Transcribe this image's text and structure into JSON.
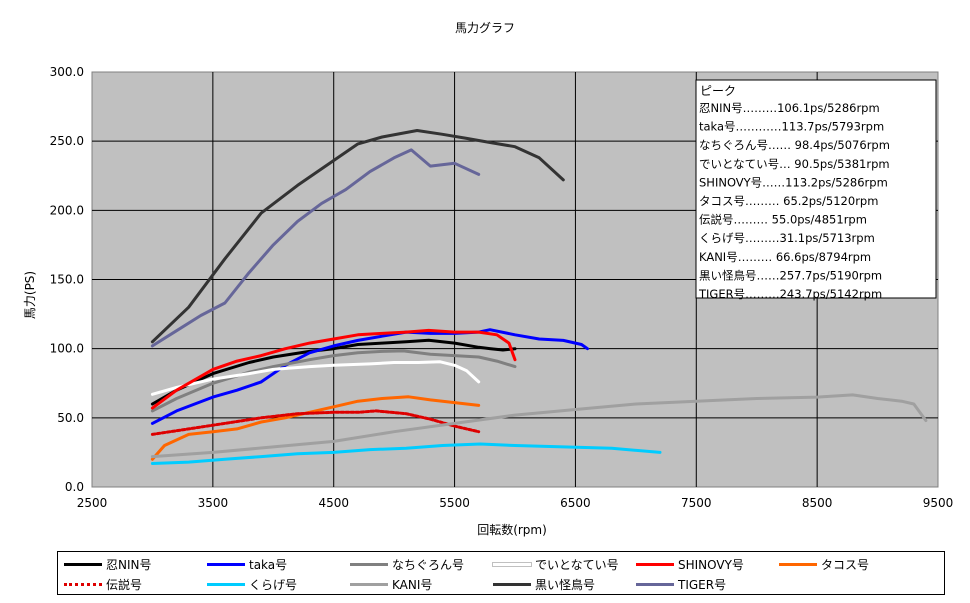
{
  "chart_data": {
    "type": "line",
    "title": "馬力グラフ",
    "xlabel": "回転数(rpm)",
    "ylabel": "馬力(PS)",
    "xlim": [
      2500,
      9500
    ],
    "ylim": [
      0,
      300
    ],
    "x_ticks": [
      "2500",
      "3500",
      "4500",
      "5500",
      "6500",
      "7500",
      "8500",
      "9500"
    ],
    "y_ticks": [
      "0.0",
      "50.0",
      "100.0",
      "150.0",
      "200.0",
      "250.0",
      "300.0"
    ],
    "grid": true,
    "peak_box": {
      "title": "ピーク",
      "rows": [
        "忍NIN号………106.1ps/5286rpm",
        "taka号…………113.7ps/5793rpm",
        "なちぐろん号……  98.4ps/5076rpm",
        "でいとなてい号…  90.5ps/5381rpm",
        "SHINOVY号……113.2ps/5286rpm",
        "タコス号………  65.2ps/5120rpm",
        "伝説号………  55.0ps/4851rpm",
        "くらげ号………31.1ps/5713rpm",
        "KANI号……… 66.6ps/8794rpm",
        "黒い怪鳥号……257.7ps/5190rpm",
        "TIGER号………243.7ps/5142rpm"
      ]
    },
    "series": [
      {
        "name": "忍NIN号",
        "color": "#000000",
        "dash": "",
        "x": [
          3000,
          3200,
          3500,
          3800,
          4000,
          4300,
          4500,
          4700,
          4900,
          5100,
          5286,
          5500,
          5700,
          5800,
          5900,
          6000
        ],
        "y": [
          60,
          70,
          82,
          90,
          94,
          98,
          100,
          103,
          104,
          105,
          106.1,
          104,
          101,
          100,
          99,
          100
        ]
      },
      {
        "name": "taka号",
        "color": "#0000ff",
        "dash": "",
        "x": [
          3000,
          3200,
          3500,
          3700,
          3900,
          4100,
          4300,
          4500,
          4700,
          4900,
          5100,
          5300,
          5500,
          5700,
          5793,
          6000,
          6200,
          6400,
          6550,
          6600
        ],
        "y": [
          46,
          55,
          65,
          70,
          76,
          88,
          97,
          102,
          106,
          109,
          112,
          111,
          111,
          112,
          113.7,
          110,
          107,
          106,
          103,
          100
        ]
      },
      {
        "name": "なちぐろん号",
        "color": "#808080",
        "dash": "",
        "x": [
          3000,
          3200,
          3500,
          3800,
          4000,
          4300,
          4500,
          4700,
          4900,
          5076,
          5300,
          5500,
          5700,
          5850,
          6000
        ],
        "y": [
          55,
          64,
          75,
          83,
          87,
          92,
          95,
          97,
          98,
          98.4,
          96,
          95,
          94,
          91,
          87
        ]
      },
      {
        "name": "でいとなてい号",
        "color": "#ffffff",
        "dash": "",
        "x": [
          3000,
          3200,
          3500,
          3800,
          4000,
          4300,
          4500,
          4800,
          5000,
          5200,
          5381,
          5500,
          5600,
          5700
        ],
        "y": [
          67,
          72,
          78,
          82,
          85,
          87,
          88,
          89,
          90,
          90,
          90.5,
          88,
          84,
          76
        ]
      },
      {
        "name": "SHINOVY号",
        "color": "#ff0000",
        "dash": "",
        "x": [
          3000,
          3200,
          3500,
          3700,
          3900,
          4100,
          4300,
          4500,
          4700,
          4900,
          5100,
          5286,
          5500,
          5700,
          5850,
          5950,
          6000
        ],
        "y": [
          57,
          70,
          85,
          91,
          95,
          100,
          104,
          107,
          110,
          111,
          112,
          113.2,
          112,
          112,
          110,
          104,
          92
        ]
      },
      {
        "name": "タコス号",
        "color": "#ff6600",
        "dash": "",
        "x": [
          3000,
          3100,
          3300,
          3500,
          3700,
          3900,
          4100,
          4300,
          4500,
          4700,
          4900,
          5120,
          5300,
          5500,
          5700
        ],
        "y": [
          20,
          30,
          38,
          40,
          42,
          47,
          50,
          54,
          58,
          62,
          64,
          65.2,
          63,
          61,
          59
        ]
      },
      {
        "name": "伝説号",
        "color": "#dd0000",
        "dash": "3 2",
        "x": [
          3000,
          3300,
          3600,
          3900,
          4200,
          4500,
          4700,
          4851,
          5100,
          5300,
          5500,
          5700
        ],
        "y": [
          38,
          42,
          46,
          50,
          53,
          54,
          54,
          55,
          53,
          49,
          44,
          40
        ]
      },
      {
        "name": "くらげ号",
        "color": "#00ccff",
        "dash": "",
        "x": [
          3000,
          3300,
          3600,
          3900,
          4200,
          4500,
          4800,
          5100,
          5400,
          5713,
          6000,
          6400,
          6800,
          7200
        ],
        "y": [
          17,
          18,
          20,
          22,
          24,
          25,
          27,
          28,
          30,
          31.1,
          30,
          29,
          28,
          25
        ]
      },
      {
        "name": "KANI号",
        "color": "#a0a0a0",
        "dash": "",
        "x": [
          3000,
          3500,
          4000,
          4500,
          5000,
          5500,
          6000,
          6500,
          7000,
          7500,
          8000,
          8500,
          8794,
          9000,
          9200,
          9300,
          9400
        ],
        "y": [
          22,
          25,
          29,
          33,
          40,
          46,
          52,
          56,
          60,
          62,
          64,
          65,
          66.6,
          64,
          62,
          60,
          48
        ]
      },
      {
        "name": "黒い怪鳥号",
        "color": "#333333",
        "dash": "",
        "x": [
          3000,
          3300,
          3600,
          3900,
          4200,
          4500,
          4700,
          4900,
          5190,
          5400,
          5600,
          5800,
          6000,
          6200,
          6400
        ],
        "y": [
          105,
          130,
          165,
          198,
          218,
          236,
          248,
          253,
          257.7,
          255,
          252,
          249,
          246,
          238,
          222
        ]
      },
      {
        "name": "TIGER号",
        "color": "#666699",
        "dash": "",
        "x": [
          3000,
          3200,
          3400,
          3600,
          3800,
          4000,
          4200,
          4400,
          4600,
          4800,
          5000,
          5142,
          5300,
          5500,
          5700
        ],
        "y": [
          102,
          113,
          124,
          133,
          155,
          175,
          192,
          205,
          215,
          228,
          238,
          243.7,
          232,
          234,
          226
        ]
      }
    ]
  }
}
